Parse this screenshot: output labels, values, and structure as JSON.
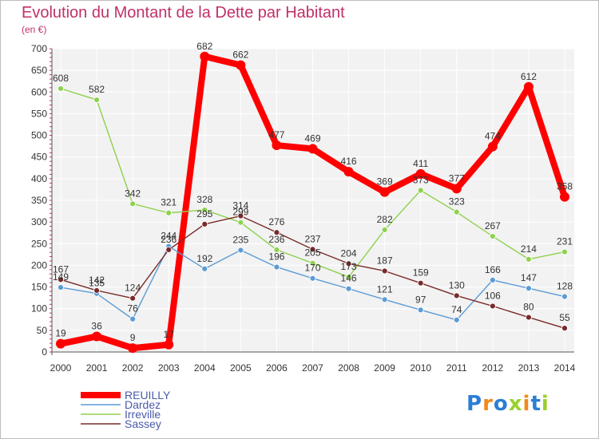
{
  "chart_data": {
    "type": "line",
    "title": "Evolution du Montant de la Dette par Habitant",
    "subtitle": "(en €)",
    "x": [
      "2000",
      "2001",
      "2002",
      "2003",
      "2004",
      "2005",
      "2006",
      "2007",
      "2008",
      "2009",
      "2010",
      "2011",
      "2012",
      "2013",
      "2014"
    ],
    "ylim": [
      0,
      700
    ],
    "yticks": [
      0,
      50,
      100,
      150,
      200,
      250,
      300,
      350,
      400,
      450,
      500,
      550,
      600,
      650,
      700
    ],
    "grid": true,
    "legend_position": "bottom-left",
    "series": [
      {
        "name": "REUILLY",
        "color": "#ff0000",
        "values": [
          19,
          36,
          9,
          17,
          682,
          662,
          477,
          469,
          416,
          369,
          411,
          377,
          474,
          612,
          358
        ]
      },
      {
        "name": "Dardez",
        "color": "#5b9bd5",
        "values": [
          149,
          135,
          76,
          244,
          192,
          235,
          196,
          170,
          146,
          121,
          97,
          74,
          166,
          147,
          128
        ]
      },
      {
        "name": "Irreville",
        "color": "#8fd14f",
        "values": [
          608,
          582,
          342,
          321,
          328,
          299,
          236,
          205,
          173,
          282,
          373,
          323,
          267,
          214,
          231
        ]
      },
      {
        "name": "Sassey",
        "color": "#7a2a2a",
        "values": [
          167,
          142,
          124,
          236,
          295,
          314,
          276,
          237,
          204,
          187,
          159,
          130,
          106,
          80,
          55
        ]
      }
    ]
  },
  "logo": {
    "letters": [
      {
        "ch": "P",
        "color": "#2a7fd4"
      },
      {
        "ch": "r",
        "color": "#f08a1c"
      },
      {
        "ch": "o",
        "color": "#2a7fd4"
      },
      {
        "ch": "x",
        "color": "#9bcf2e"
      },
      {
        "ch": "i",
        "color": "#f08a1c"
      },
      {
        "ch": "t",
        "color": "#2a7fd4"
      },
      {
        "ch": "i",
        "color": "#9bcf2e"
      }
    ]
  }
}
